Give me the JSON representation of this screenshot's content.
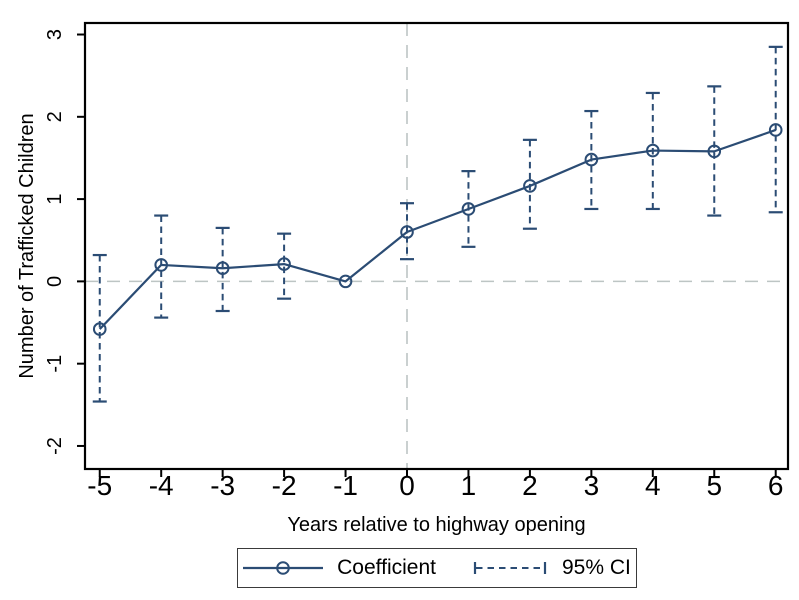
{
  "chart_data": {
    "type": "line",
    "title": "",
    "xlabel": "Years relative to highway opening",
    "ylabel": "Number of Trafficked Children",
    "x": [
      -5,
      -4,
      -3,
      -2,
      -1,
      0,
      1,
      2,
      3,
      4,
      5,
      6
    ],
    "series": [
      {
        "name": "Coefficient",
        "values": [
          -0.58,
          0.2,
          0.16,
          0.21,
          0.0,
          0.6,
          0.88,
          1.16,
          1.48,
          1.59,
          1.58,
          1.84
        ]
      }
    ],
    "ci": {
      "name": "95% CI",
      "lower": [
        -1.46,
        -0.44,
        -0.36,
        -0.21,
        null,
        0.27,
        0.42,
        0.64,
        0.88,
        0.88,
        0.8,
        0.84
      ],
      "upper": [
        0.32,
        0.8,
        0.65,
        0.58,
        null,
        0.95,
        1.34,
        1.72,
        2.07,
        2.29,
        2.37,
        2.85
      ]
    },
    "xticks": [
      -5,
      -4,
      -3,
      -2,
      -1,
      0,
      1,
      2,
      3,
      4,
      5,
      6
    ],
    "yticks": [
      -2,
      -1,
      0,
      1,
      2,
      3
    ],
    "xlim": [
      -5.24,
      6.2
    ],
    "ylim": [
      -2.28,
      3.14
    ],
    "grid": false,
    "reference_lines": {
      "vertical_x": 0,
      "horizontal_y": 0,
      "style": "dashed"
    },
    "legend_position": "bottom",
    "colors": {
      "line": "#2b4c74",
      "marker": "#2b4c74",
      "ci": "#2b4c74",
      "reference_line": "#bdc5c4",
      "frame": "#000000",
      "text": "#000000",
      "legend_border": "#3a3a3a",
      "background": "#ffffff"
    }
  }
}
